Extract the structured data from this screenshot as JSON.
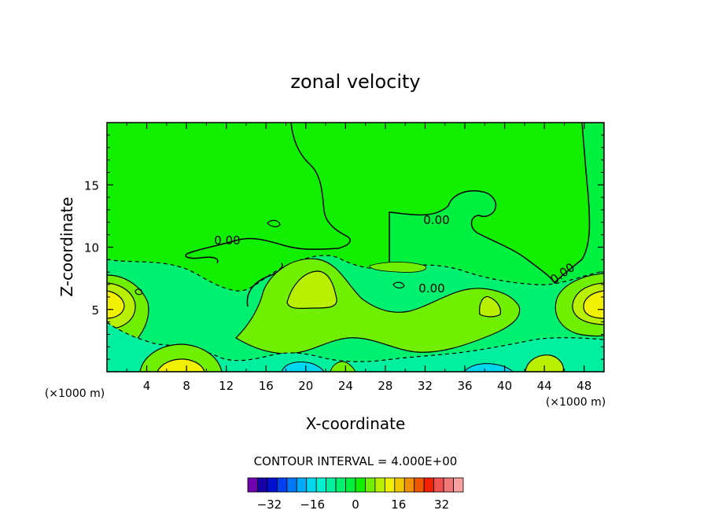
{
  "chart_data": {
    "type": "heatmap",
    "title": "zonal velocity",
    "xlabel": "X-coordinate",
    "ylabel": "Z-coordinate",
    "x_unit_left": "(×1000 m)",
    "x_unit_right": "(×1000 m)",
    "xlim": [
      0,
      50
    ],
    "ylim": [
      0,
      20
    ],
    "xticks": [
      "4",
      "8",
      "12",
      "16",
      "20",
      "24",
      "28",
      "32",
      "36",
      "40",
      "44",
      "48"
    ],
    "yticks": [
      "5",
      "10",
      "15"
    ],
    "contour_interval_text": "CONTOUR INTERVAL = 4.000E+00",
    "contour_labels": [
      "0.00",
      "0.00",
      "0.00",
      "0.00"
    ],
    "colorbar": {
      "colors": [
        "#7000b0",
        "#1800a8",
        "#0010d0",
        "#0040f0",
        "#0078f8",
        "#00a8f8",
        "#00d8f0",
        "#00f0d0",
        "#00f0a0",
        "#00f070",
        "#00f040",
        "#10f000",
        "#70f000",
        "#b8f000",
        "#f0f000",
        "#f0c800",
        "#f09000",
        "#f05800",
        "#f02000",
        "#f05050",
        "#f07878",
        "#f8a0a0"
      ],
      "tick_labels": [
        "-32",
        "-16",
        "0",
        "16",
        "32"
      ],
      "tick_values": [
        -32,
        -16,
        0,
        16,
        32
      ],
      "min": -40,
      "max": 40
    },
    "regions": [
      {
        "level": 0,
        "desc": "background"
      },
      {
        "level": -4,
        "desc": "upper right weak negative"
      },
      {
        "level": -4,
        "desc": "low level band"
      },
      {
        "level": 4,
        "desc": "positive tongue"
      },
      {
        "level": 8,
        "desc": "positive core"
      },
      {
        "level": 12,
        "desc": "jet left"
      },
      {
        "level": 12,
        "desc": "jet right"
      },
      {
        "level": -12,
        "desc": "surface cyan"
      }
    ]
  }
}
